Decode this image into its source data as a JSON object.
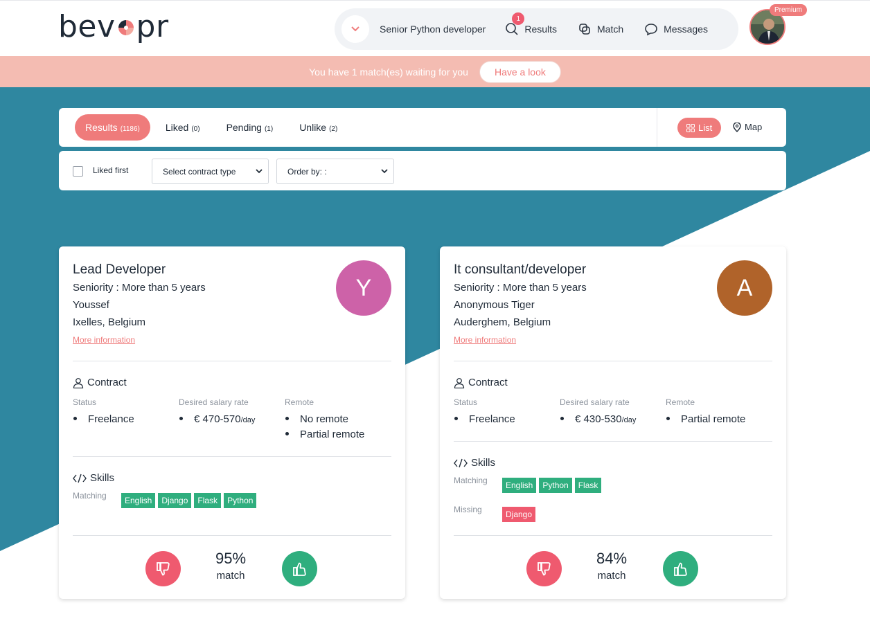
{
  "brand": {
    "logo_text_left": "bev",
    "logo_text_right": "pr",
    "accent": "#ef7b7b",
    "teal": "#2f87a0"
  },
  "nav": {
    "search_value": "Senior Python developer",
    "results_label": "Results",
    "results_badge": "1",
    "match_label": "Match",
    "messages_label": "Messages",
    "premium_label": "Premium"
  },
  "banner": {
    "text": "You have 1 match(es) waiting for you",
    "button_label": "Have a look"
  },
  "tabs": {
    "results": {
      "label": "Results",
      "count": "(1186)"
    },
    "liked": {
      "label": "Liked",
      "count": "(0)"
    },
    "pending": {
      "label": "Pending",
      "count": "(1)"
    },
    "unlike": {
      "label": "Unlike",
      "count": "(2)"
    },
    "list_label": "List",
    "map_label": "Map"
  },
  "filters": {
    "liked_first_label": "Liked first",
    "contract_select": "Select contract type",
    "order_select": "Order by: :"
  },
  "cards": [
    {
      "title": "Lead Developer",
      "seniority": "Seniority : More than 5 years",
      "name": "Youssef",
      "location": "Ixelles, Belgium",
      "more_info": "More information",
      "avatar_letter": "Y",
      "avatar_color": "#cd62a8",
      "contract_title": "Contract",
      "status_label": "Status",
      "salary_label": "Desired salary rate",
      "remote_label": "Remote",
      "status": [
        "Freelance"
      ],
      "salary": "€ 470-570",
      "salary_unit": "/day",
      "remote": [
        "No remote",
        "Partial remote"
      ],
      "skills_title": "Skills",
      "matching_label": "Matching",
      "matching": [
        "English",
        "Django",
        "Flask",
        "Python"
      ],
      "missing_label": "",
      "missing": [],
      "match_pct": "95%",
      "match_label": "match"
    },
    {
      "title": "It consultant/developer",
      "seniority": "Seniority : More than 5 years",
      "name": "Anonymous Tiger",
      "location": "Auderghem, Belgium",
      "more_info": "More information",
      "avatar_letter": "A",
      "avatar_color": "#b0632a",
      "contract_title": "Contract",
      "status_label": "Status",
      "salary_label": "Desired salary rate",
      "remote_label": "Remote",
      "status": [
        "Freelance"
      ],
      "salary": "€ 430-530",
      "salary_unit": "/day",
      "remote": [
        "Partial remote"
      ],
      "skills_title": "Skills",
      "matching_label": "Matching",
      "matching": [
        "English",
        "Python",
        "Flask"
      ],
      "missing_label": "Missing",
      "missing": [
        "Django"
      ],
      "match_pct": "84%",
      "match_label": "match"
    }
  ]
}
